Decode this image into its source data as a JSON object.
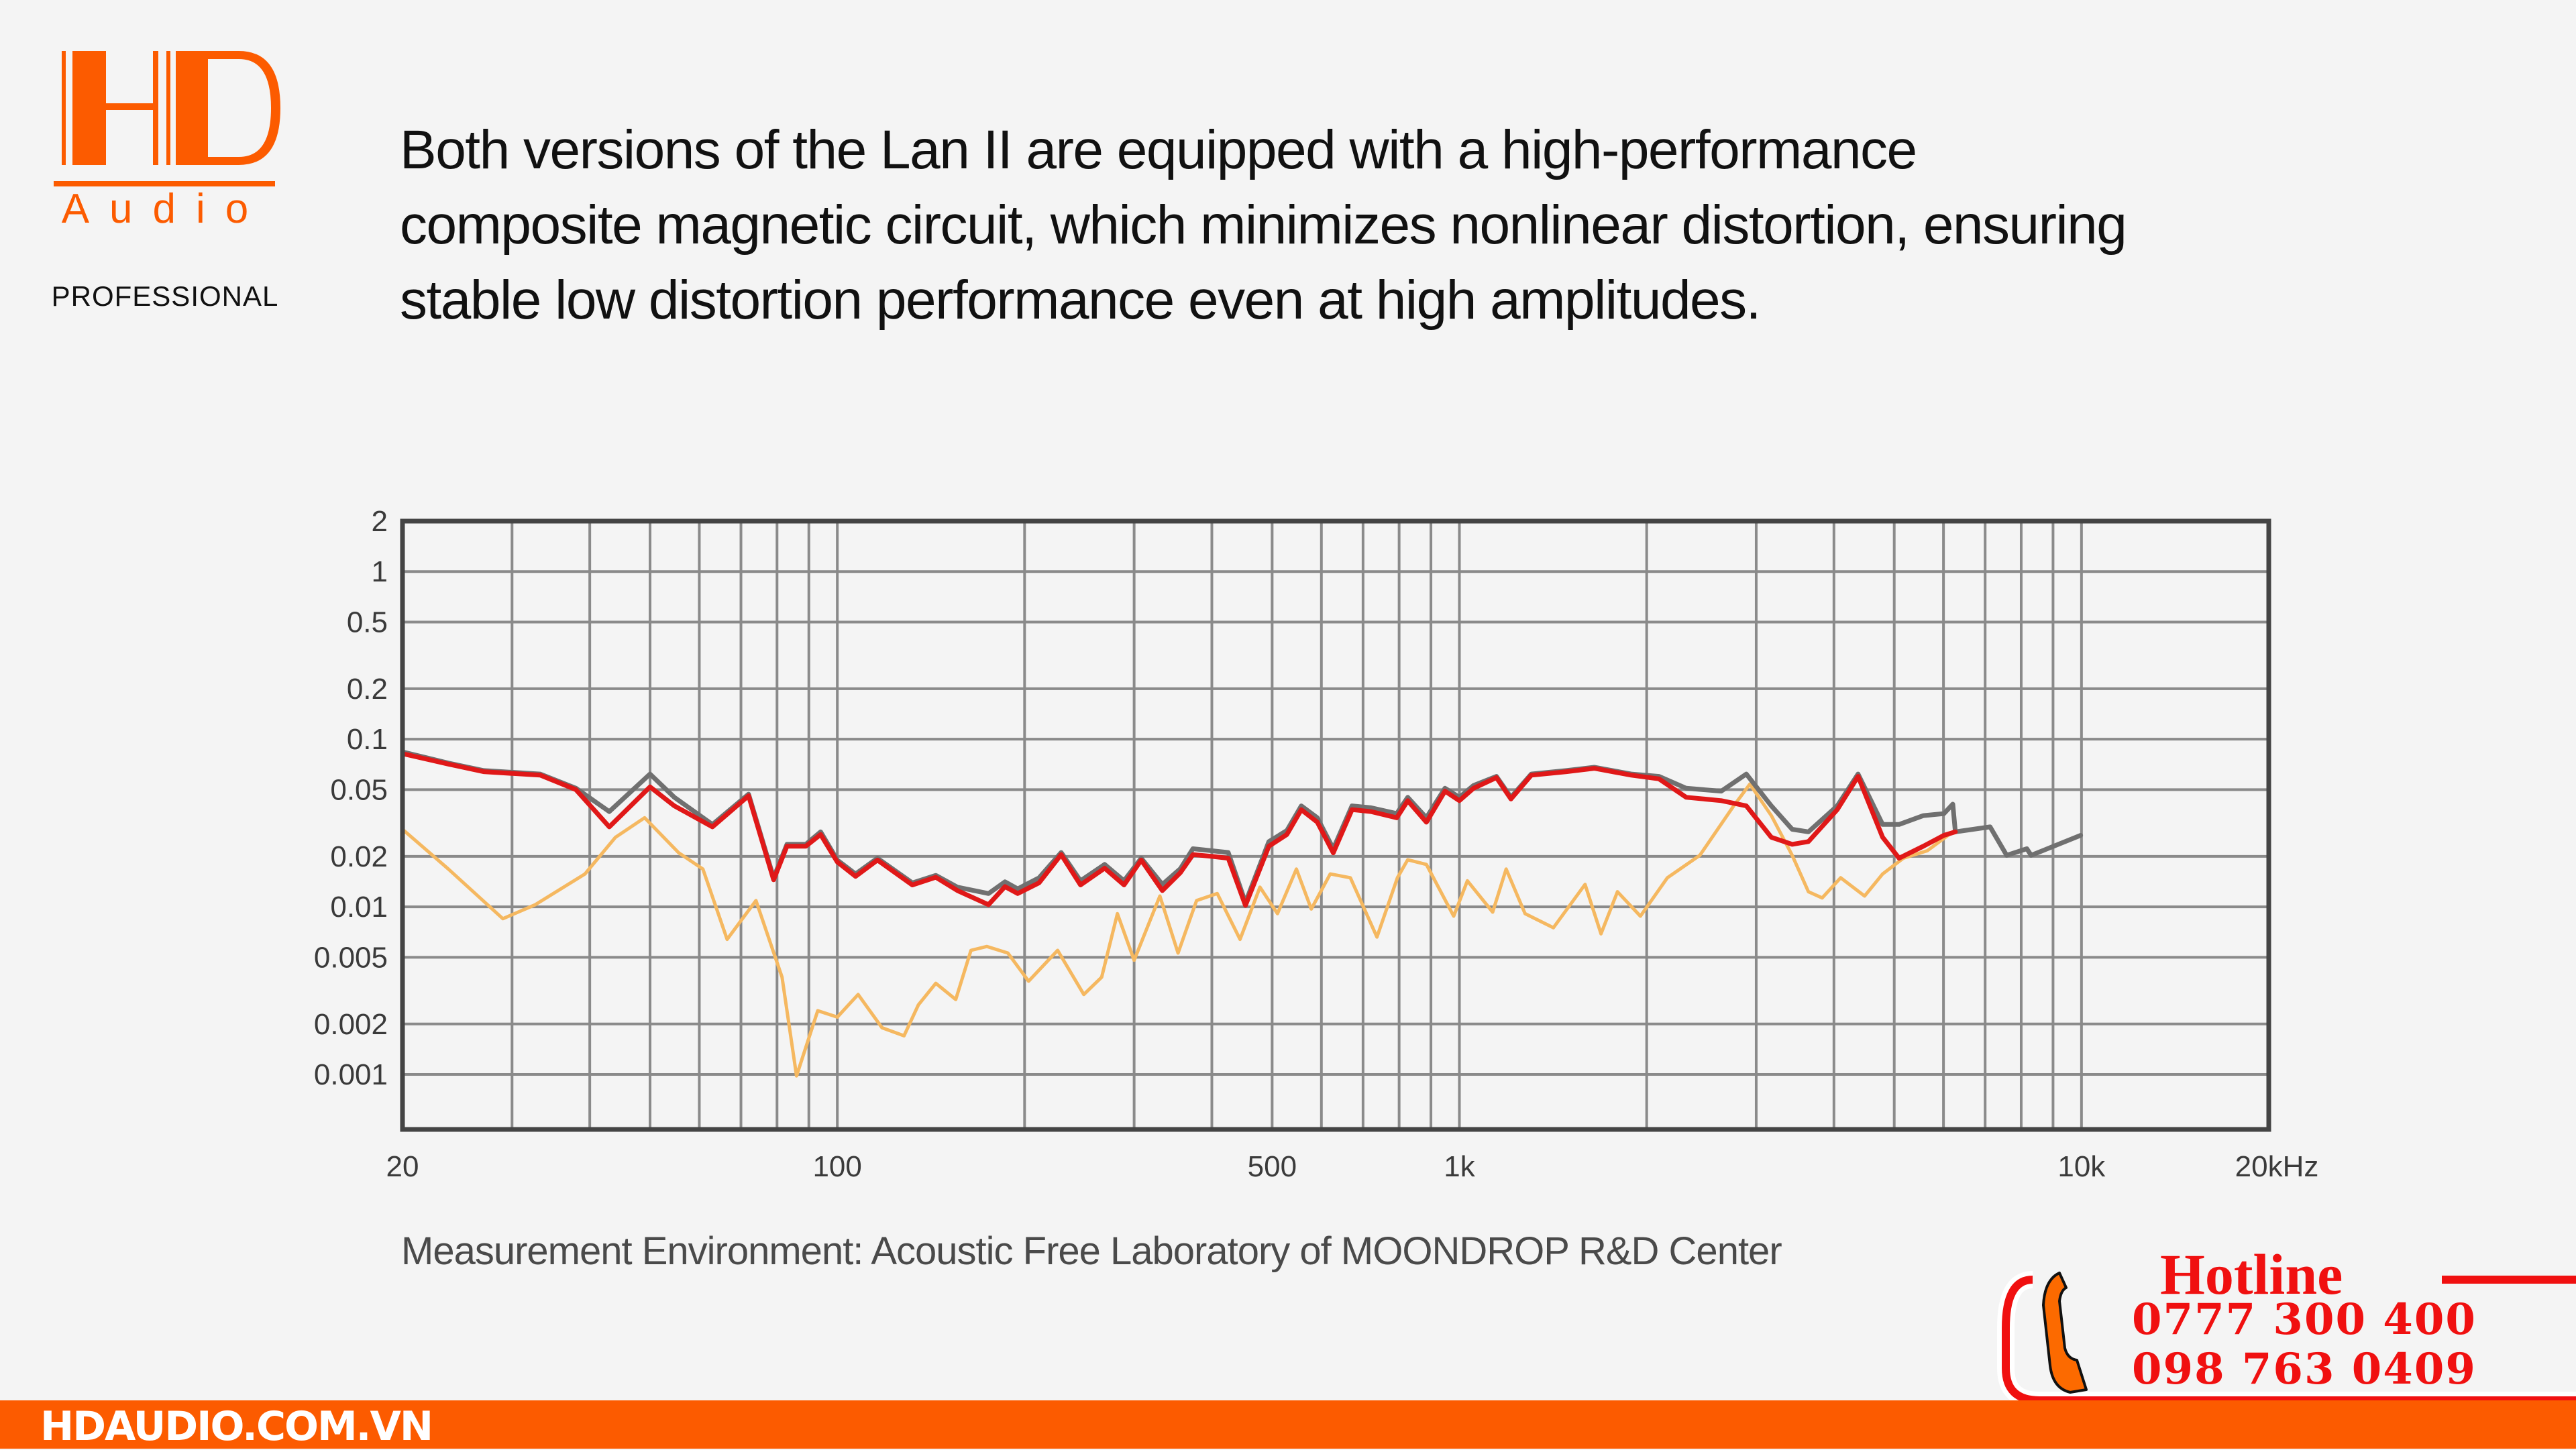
{
  "brand": {
    "logo_mark": "HD",
    "logo_word": "Audio",
    "logo_sub": "PROFESSIONAL",
    "accent_color": "#fc5b00"
  },
  "headline": {
    "lines": [
      "Both versions of the Lan II are equipped with a high-performance",
      "composite magnetic circuit, which minimizes nonlinear distortion, ensuring",
      "stable low distortion performance even at high amplitudes."
    ]
  },
  "caption": "Measurement Environment: Acoustic Free Laboratory of MOONDROP R&D Center",
  "hotline": {
    "title": "Hotline",
    "numbers": [
      "0777 300 400",
      "098 763 0409"
    ],
    "color": "#f01010"
  },
  "footer": {
    "site": "HDAUDIO.COM.VN"
  },
  "chart_data": {
    "type": "line",
    "title": "",
    "xlabel": "",
    "ylabel": "",
    "xscale": "log",
    "yscale": "log",
    "xlim": [
      20,
      20000
    ],
    "ylim": [
      0.00047,
      2
    ],
    "grid": true,
    "legend": "none",
    "x_ticks": [
      {
        "value": 20,
        "label": "20"
      },
      {
        "value": 100,
        "label": "100"
      },
      {
        "value": 500,
        "label": "500"
      },
      {
        "value": 1000,
        "label": "1k"
      },
      {
        "value": 10000,
        "label": "10k"
      },
      {
        "value": 20000,
        "label": "20kHz"
      }
    ],
    "y_ticks": [
      {
        "value": 2,
        "label": "2"
      },
      {
        "value": 1,
        "label": "1"
      },
      {
        "value": 0.5,
        "label": "0.5"
      },
      {
        "value": 0.2,
        "label": "0.2"
      },
      {
        "value": 0.1,
        "label": "0.1"
      },
      {
        "value": 0.05,
        "label": "0.05"
      },
      {
        "value": 0.02,
        "label": "0.02"
      },
      {
        "value": 0.01,
        "label": "0.01"
      },
      {
        "value": 0.005,
        "label": "0.005"
      },
      {
        "value": 0.002,
        "label": "0.002"
      },
      {
        "value": 0.001,
        "label": "0.001"
      }
    ],
    "series": [
      {
        "name": "gray",
        "color": "#707070",
        "points": [
          [
            20,
            0.084
          ],
          [
            23.7,
            0.072
          ],
          [
            27,
            0.065
          ],
          [
            33.3,
            0.062
          ],
          [
            38,
            0.051
          ],
          [
            43,
            0.037
          ],
          [
            50,
            0.062
          ],
          [
            54.7,
            0.045
          ],
          [
            63,
            0.031
          ],
          [
            72,
            0.047
          ],
          [
            79,
            0.0149
          ],
          [
            83,
            0.0236
          ],
          [
            89,
            0.0236
          ],
          [
            94,
            0.028
          ],
          [
            100,
            0.019
          ],
          [
            107,
            0.0157
          ],
          [
            116,
            0.0195
          ],
          [
            132,
            0.0139
          ],
          [
            144,
            0.0154
          ],
          [
            156,
            0.0131
          ],
          [
            175,
            0.012
          ],
          [
            186,
            0.0141
          ],
          [
            195,
            0.0128
          ],
          [
            211,
            0.0149
          ],
          [
            229,
            0.0211
          ],
          [
            246,
            0.0143
          ],
          [
            269,
            0.0179
          ],
          [
            289,
            0.0143
          ],
          [
            308,
            0.0195
          ],
          [
            333,
            0.0136
          ],
          [
            356,
            0.0169
          ],
          [
            373,
            0.0222
          ],
          [
            400,
            0.0216
          ],
          [
            425,
            0.0211
          ],
          [
            453,
            0.0106
          ],
          [
            494,
            0.0245
          ],
          [
            528,
            0.0285
          ],
          [
            557,
            0.04
          ],
          [
            591,
            0.034
          ],
          [
            627,
            0.0222
          ],
          [
            672,
            0.04
          ],
          [
            721,
            0.039
          ],
          [
            793,
            0.036
          ],
          [
            826,
            0.045
          ],
          [
            885,
            0.034
          ],
          [
            948,
            0.051
          ],
          [
            1000,
            0.045
          ],
          [
            1054,
            0.053
          ],
          [
            1147,
            0.06
          ],
          [
            1210,
            0.045
          ],
          [
            1305,
            0.062
          ],
          [
            1486,
            0.065
          ],
          [
            1647,
            0.068
          ],
          [
            1889,
            0.062
          ],
          [
            2093,
            0.06
          ],
          [
            2315,
            0.051
          ],
          [
            2636,
            0.049
          ],
          [
            2892,
            0.062
          ],
          [
            3173,
            0.04
          ],
          [
            3427,
            0.029
          ],
          [
            3640,
            0.028
          ],
          [
            4050,
            0.04
          ],
          [
            4374,
            0.062
          ],
          [
            4790,
            0.031
          ],
          [
            5090,
            0.031
          ],
          [
            5570,
            0.035
          ],
          [
            6010,
            0.036
          ],
          [
            6210,
            0.041
          ],
          [
            6270,
            0.028
          ],
          [
            7130,
            0.03
          ],
          [
            7580,
            0.0203
          ],
          [
            8170,
            0.0222
          ],
          [
            8300,
            0.0203
          ],
          [
            9970,
            0.0267
          ]
        ]
      },
      {
        "name": "red",
        "color": "#e01818",
        "points": [
          [
            20,
            0.082
          ],
          [
            23.7,
            0.071
          ],
          [
            27,
            0.064
          ],
          [
            33.3,
            0.061
          ],
          [
            38,
            0.05
          ],
          [
            43,
            0.03
          ],
          [
            50,
            0.052
          ],
          [
            54.7,
            0.04
          ],
          [
            63,
            0.03
          ],
          [
            72,
            0.046
          ],
          [
            79,
            0.0145
          ],
          [
            83,
            0.023
          ],
          [
            89,
            0.023
          ],
          [
            94,
            0.027
          ],
          [
            100,
            0.0185
          ],
          [
            107,
            0.0152
          ],
          [
            116,
            0.019
          ],
          [
            132,
            0.0135
          ],
          [
            144,
            0.015
          ],
          [
            156,
            0.0125
          ],
          [
            175,
            0.0103
          ],
          [
            186,
            0.0132
          ],
          [
            195,
            0.012
          ],
          [
            211,
            0.0139
          ],
          [
            229,
            0.0205
          ],
          [
            246,
            0.0135
          ],
          [
            269,
            0.017
          ],
          [
            289,
            0.0135
          ],
          [
            308,
            0.019
          ],
          [
            333,
            0.0125
          ],
          [
            356,
            0.016
          ],
          [
            373,
            0.0205
          ],
          [
            400,
            0.02
          ],
          [
            425,
            0.0195
          ],
          [
            453,
            0.0102
          ],
          [
            494,
            0.023
          ],
          [
            528,
            0.027
          ],
          [
            557,
            0.038
          ],
          [
            591,
            0.032
          ],
          [
            627,
            0.021
          ],
          [
            672,
            0.038
          ],
          [
            721,
            0.037
          ],
          [
            793,
            0.034
          ],
          [
            826,
            0.043
          ],
          [
            885,
            0.032
          ],
          [
            948,
            0.049
          ],
          [
            1000,
            0.043
          ],
          [
            1054,
            0.051
          ],
          [
            1147,
            0.059
          ],
          [
            1210,
            0.044
          ],
          [
            1305,
            0.061
          ],
          [
            1486,
            0.064
          ],
          [
            1647,
            0.067
          ],
          [
            1889,
            0.061
          ],
          [
            2093,
            0.058
          ],
          [
            2315,
            0.045
          ],
          [
            2636,
            0.043
          ],
          [
            2892,
            0.04
          ],
          [
            3173,
            0.026
          ],
          [
            3427,
            0.0236
          ],
          [
            3640,
            0.0245
          ],
          [
            4050,
            0.038
          ],
          [
            4374,
            0.06
          ],
          [
            4790,
            0.026
          ],
          [
            5090,
            0.0195
          ],
          [
            5570,
            0.023
          ],
          [
            6010,
            0.0267
          ],
          [
            6270,
            0.028
          ]
        ]
      },
      {
        "name": "yellow",
        "color": "#f5b860",
        "points": [
          [
            20,
            0.029
          ],
          [
            23.7,
            0.0168
          ],
          [
            29,
            0.0085
          ],
          [
            32.7,
            0.0103
          ],
          [
            39.3,
            0.0157
          ],
          [
            44,
            0.026
          ],
          [
            49,
            0.034
          ],
          [
            55.6,
            0.021
          ],
          [
            60.8,
            0.0168
          ],
          [
            66.5,
            0.0064
          ],
          [
            74,
            0.0109
          ],
          [
            81.5,
            0.0038
          ],
          [
            86,
            0.00098
          ],
          [
            93,
            0.0024
          ],
          [
            100,
            0.0022
          ],
          [
            108,
            0.003
          ],
          [
            118,
            0.0019
          ],
          [
            128,
            0.0017
          ],
          [
            135,
            0.0026
          ],
          [
            144,
            0.0035
          ],
          [
            155,
            0.0028
          ],
          [
            164,
            0.0055
          ],
          [
            174,
            0.0058
          ],
          [
            188,
            0.0053
          ],
          [
            203,
            0.0036
          ],
          [
            226,
            0.0055
          ],
          [
            249,
            0.003
          ],
          [
            266,
            0.0038
          ],
          [
            282,
            0.0091
          ],
          [
            300,
            0.0048
          ],
          [
            330,
            0.0116
          ],
          [
            353,
            0.0053
          ],
          [
            378,
            0.0109
          ],
          [
            408,
            0.012
          ],
          [
            444,
            0.0064
          ],
          [
            478,
            0.0131
          ],
          [
            510,
            0.0091
          ],
          [
            547,
            0.0168
          ],
          [
            578,
            0.0097
          ],
          [
            620,
            0.0157
          ],
          [
            668,
            0.0149
          ],
          [
            737,
            0.0066
          ],
          [
            795,
            0.0149
          ],
          [
            826,
            0.0191
          ],
          [
            885,
            0.0179
          ],
          [
            979,
            0.0088
          ],
          [
            1030,
            0.0143
          ],
          [
            1131,
            0.0093
          ],
          [
            1189,
            0.0168
          ],
          [
            1275,
            0.0091
          ],
          [
            1416,
            0.0075
          ],
          [
            1592,
            0.0136
          ],
          [
            1689,
            0.0069
          ],
          [
            1795,
            0.0123
          ],
          [
            1954,
            0.0088
          ],
          [
            2159,
            0.0149
          ],
          [
            2435,
            0.0203
          ],
          [
            2760,
            0.04
          ],
          [
            2930,
            0.054
          ],
          [
            3173,
            0.035
          ],
          [
            3427,
            0.0203
          ],
          [
            3640,
            0.0123
          ],
          [
            3830,
            0.0113
          ],
          [
            4100,
            0.0149
          ],
          [
            4480,
            0.0116
          ],
          [
            4790,
            0.0157
          ],
          [
            5170,
            0.0195
          ],
          [
            5650,
            0.0216
          ],
          [
            6210,
            0.028
          ]
        ]
      }
    ]
  }
}
